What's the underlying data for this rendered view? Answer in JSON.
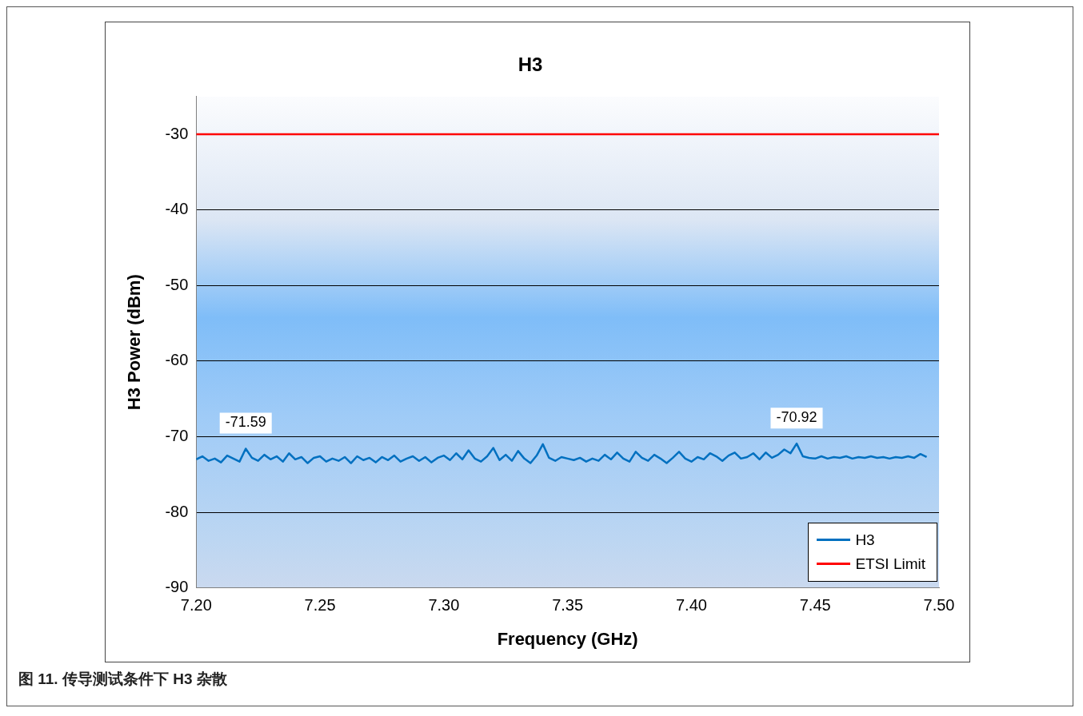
{
  "chart_data": {
    "type": "line",
    "title": "H3",
    "xlabel": "Frequency (GHz)",
    "ylabel": "H3 Power (dBm)",
    "xlim": [
      7.2,
      7.5
    ],
    "xticks": [
      {
        "value": 7.2,
        "label": "7.20"
      },
      7.25,
      {
        "value": 7.3,
        "label": "7.30"
      },
      7.35,
      {
        "value": 7.4,
        "label": "7.40"
      },
      7.45,
      {
        "value": 7.5,
        "label": "7.50"
      }
    ],
    "ylim": [
      -90,
      -25
    ],
    "yticks": [
      -90,
      -80,
      -70,
      -60,
      -50,
      -40,
      -30
    ],
    "grid": "y",
    "legend": "bottom right",
    "series": [
      {
        "name": "H3",
        "color": "#0070c0",
        "x": [
          7.2,
          7.2025,
          7.205,
          7.2075,
          7.21,
          7.2125,
          7.215,
          7.2175,
          7.22,
          7.2225,
          7.225,
          7.2275,
          7.23,
          7.2325,
          7.235,
          7.2375,
          7.24,
          7.2425,
          7.245,
          7.2475,
          7.25,
          7.2525,
          7.255,
          7.2575,
          7.26,
          7.2625,
          7.265,
          7.2675,
          7.27,
          7.2725,
          7.275,
          7.2775,
          7.28,
          7.2825,
          7.285,
          7.2875,
          7.29,
          7.2925,
          7.295,
          7.2975,
          7.3,
          7.3025,
          7.305,
          7.3075,
          7.31,
          7.3125,
          7.315,
          7.3175,
          7.32,
          7.3225,
          7.325,
          7.3275,
          7.33,
          7.3325,
          7.335,
          7.3375,
          7.34,
          7.3425,
          7.345,
          7.3475,
          7.35,
          7.3525,
          7.355,
          7.3575,
          7.36,
          7.3625,
          7.365,
          7.3675,
          7.37,
          7.3725,
          7.375,
          7.3775,
          7.38,
          7.3825,
          7.385,
          7.3875,
          7.39,
          7.3925,
          7.395,
          7.3975,
          7.4,
          7.4025,
          7.405,
          7.4075,
          7.41,
          7.4125,
          7.415,
          7.4175,
          7.42,
          7.4225,
          7.425,
          7.4275,
          7.43,
          7.4325,
          7.435,
          7.4375,
          7.44,
          7.4425,
          7.445,
          7.4475,
          7.45,
          7.4525,
          7.455,
          7.4575,
          7.46,
          7.4625,
          7.465,
          7.4675,
          7.47,
          7.4725,
          7.475,
          7.4775,
          7.48,
          7.4825,
          7.485,
          7.4875,
          7.49,
          7.4925,
          7.495
        ],
        "values": [
          -73.0,
          -72.6,
          -73.2,
          -72.9,
          -73.4,
          -72.5,
          -72.9,
          -73.3,
          -71.59,
          -72.8,
          -73.2,
          -72.4,
          -73.0,
          -72.6,
          -73.3,
          -72.2,
          -73.0,
          -72.7,
          -73.5,
          -72.8,
          -72.6,
          -73.3,
          -72.9,
          -73.2,
          -72.7,
          -73.5,
          -72.6,
          -73.1,
          -72.8,
          -73.4,
          -72.7,
          -73.1,
          -72.5,
          -73.3,
          -72.9,
          -72.6,
          -73.2,
          -72.7,
          -73.4,
          -72.8,
          -72.5,
          -73.1,
          -72.2,
          -73.0,
          -71.8,
          -72.9,
          -73.3,
          -72.6,
          -71.5,
          -73.1,
          -72.4,
          -73.2,
          -71.9,
          -72.9,
          -73.5,
          -72.5,
          -71.0,
          -72.8,
          -73.2,
          -72.7,
          -72.9,
          -73.1,
          -72.8,
          -73.3,
          -72.9,
          -73.2,
          -72.4,
          -73.0,
          -72.1,
          -72.9,
          -73.3,
          -72.0,
          -72.8,
          -73.2,
          -72.4,
          -72.9,
          -73.5,
          -72.8,
          -72.0,
          -72.9,
          -73.3,
          -72.7,
          -73.0,
          -72.2,
          -72.6,
          -73.2,
          -72.5,
          -72.1,
          -72.9,
          -72.7,
          -72.2,
          -73.0,
          -72.1,
          -72.8,
          -72.4,
          -71.7,
          -72.2,
          -70.92,
          -72.6,
          -72.8,
          -72.9,
          -72.6,
          -72.9,
          -72.7,
          -72.8,
          -72.6,
          -72.9,
          -72.7,
          -72.8,
          -72.6,
          -72.8,
          -72.7,
          -72.9,
          -72.7,
          -72.8,
          -72.6,
          -72.8,
          -72.3,
          -72.7
        ]
      },
      {
        "name": "ETSI Limit",
        "color": "#ff0000",
        "x": [
          7.2,
          7.5
        ],
        "values": [
          -30,
          -30
        ]
      }
    ],
    "annotations": [
      {
        "text": "-71.59",
        "x": 7.22,
        "y": -71.59
      },
      {
        "text": "-70.92",
        "x": 7.4425,
        "y": -70.92
      },
      "图 11. 传导测试条件下 H3 杂散"
    ]
  }
}
